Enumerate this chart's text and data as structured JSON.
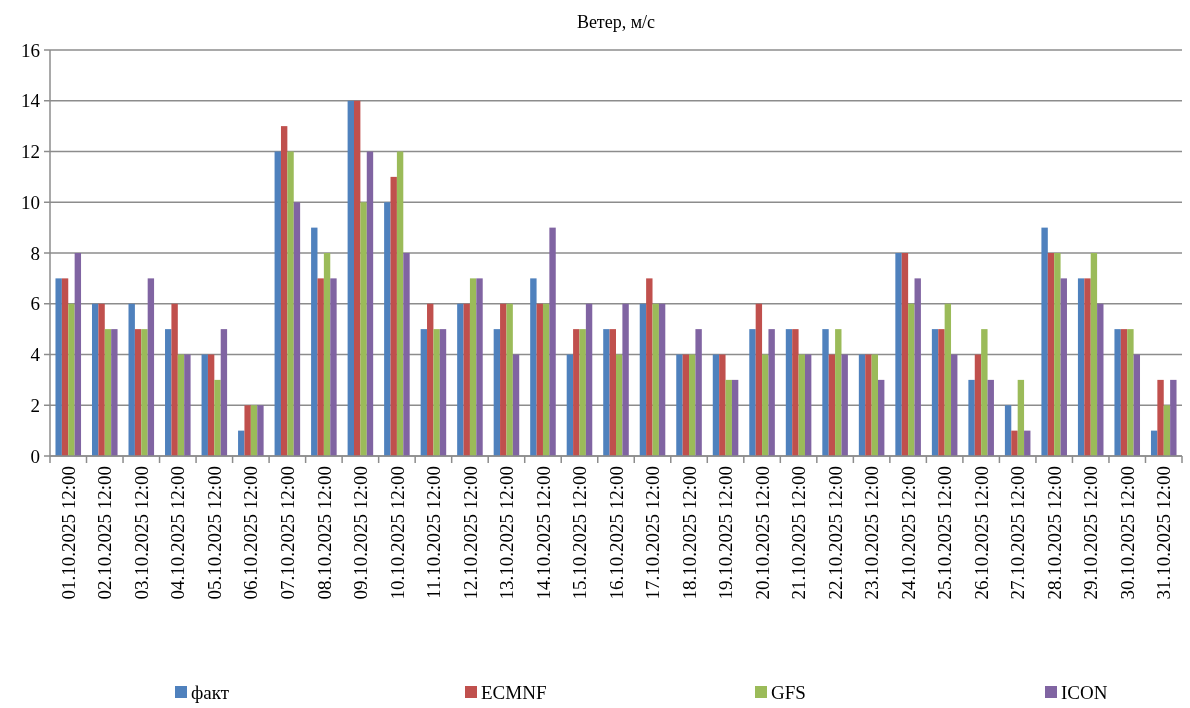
{
  "chart_data": {
    "type": "bar",
    "title": "Ветер, м/с",
    "categories": [
      "01.10.2025 12:00",
      "02.10.2025 12:00",
      "03.10.2025 12:00",
      "04.10.2025 12:00",
      "05.10.2025 12:00",
      "06.10.2025 12:00",
      "07.10.2025 12:00",
      "08.10.2025 12:00",
      "09.10.2025 12:00",
      "10.10.2025 12:00",
      "11.10.2025 12:00",
      "12.10.2025 12:00",
      "13.10.2025 12:00",
      "14.10.2025 12:00",
      "15.10.2025 12:00",
      "16.10.2025 12:00",
      "17.10.2025 12:00",
      "18.10.2025 12:00",
      "19.10.2025 12:00",
      "20.10.2025 12:00",
      "21.10.2025 12:00",
      "22.10.2025 12:00",
      "23.10.2025 12:00",
      "24.10.2025 12:00",
      "25.10.2025 12:00",
      "26.10.2025 12:00",
      "27.10.2025 12:00",
      "28.10.2025 12:00",
      "29.10.2025 12:00",
      "30.10.2025 12:00",
      "31.10.2025 12:00"
    ],
    "series": [
      {
        "name": "факт",
        "color": "#4f81bd",
        "values": [
          7,
          6,
          6,
          5,
          4,
          1,
          12,
          9,
          14,
          10,
          5,
          6,
          5,
          7,
          4,
          5,
          6,
          4,
          4,
          5,
          5,
          5,
          4,
          8,
          5,
          3,
          2,
          9,
          7,
          5,
          1
        ]
      },
      {
        "name": "ECMNF",
        "color": "#c0504d",
        "values": [
          7,
          6,
          5,
          6,
          4,
          2,
          13,
          7,
          14,
          11,
          6,
          6,
          6,
          6,
          5,
          5,
          7,
          4,
          4,
          6,
          5,
          4,
          4,
          8,
          5,
          4,
          1,
          8,
          7,
          5,
          3
        ]
      },
      {
        "name": "GFS",
        "color": "#9bbb59",
        "values": [
          6,
          5,
          5,
          4,
          3,
          2,
          12,
          8,
          10,
          12,
          5,
          7,
          6,
          6,
          5,
          4,
          6,
          4,
          3,
          4,
          4,
          5,
          4,
          6,
          6,
          5,
          3,
          8,
          8,
          5,
          2
        ]
      },
      {
        "name": "ICON",
        "color": "#8064a2",
        "values": [
          8,
          5,
          7,
          4,
          5,
          2,
          10,
          7,
          12,
          8,
          5,
          7,
          4,
          9,
          6,
          6,
          6,
          5,
          3,
          5,
          4,
          4,
          3,
          7,
          4,
          3,
          1,
          7,
          6,
          4,
          3
        ]
      }
    ],
    "ylim": [
      0,
      16
    ],
    "yticks": [
      0,
      2,
      4,
      6,
      8,
      10,
      12,
      14,
      16
    ],
    "grid": "y",
    "legend": "bottom"
  }
}
